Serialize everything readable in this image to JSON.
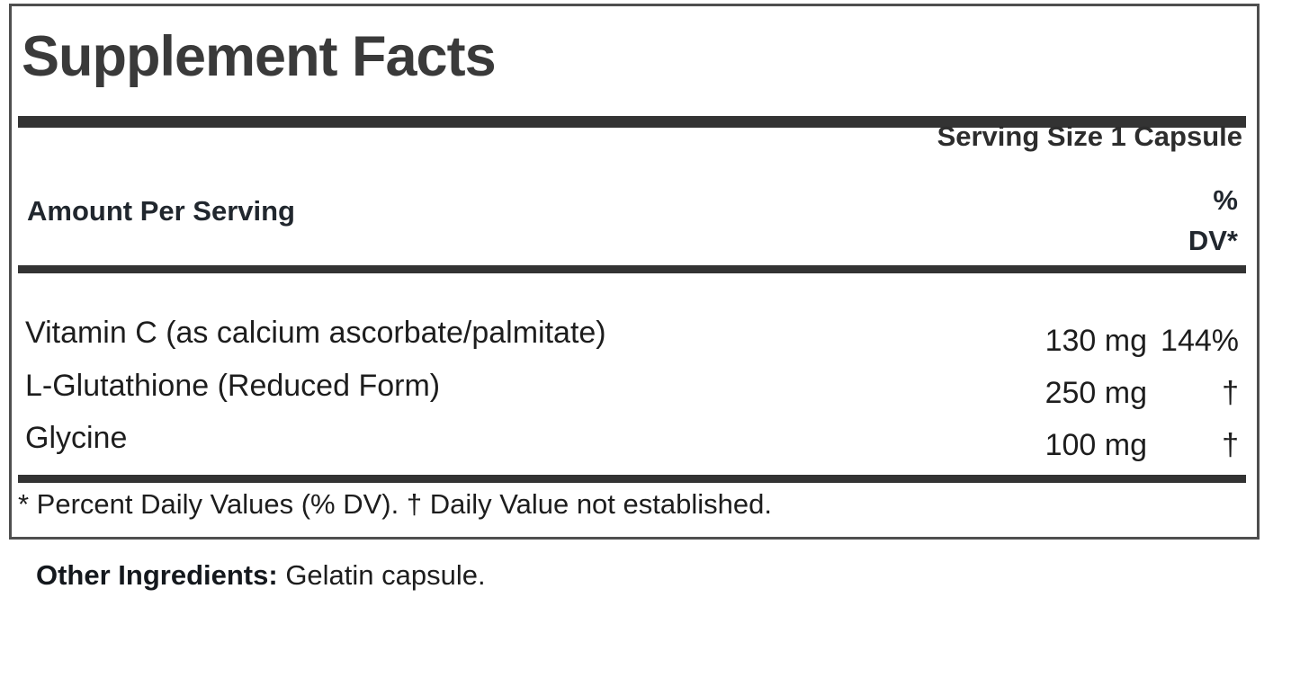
{
  "panel": {
    "title": "Supplement Facts",
    "serving_size": "Serving Size 1 Capsule",
    "columns": {
      "amount_header": "Amount Per Serving",
      "dv_header_line1": "%",
      "dv_header_line2": "DV*"
    },
    "rows": [
      {
        "name": "Vitamin C (as calcium ascorbate/palmitate)",
        "amount": "130 mg",
        "dv": "144%"
      },
      {
        "name": "L-Glutathione (Reduced Form)",
        "amount": "250 mg",
        "dv": "†"
      },
      {
        "name": "Glycine",
        "amount": "100 mg",
        "dv": "†"
      }
    ],
    "footnote": "* Percent Daily Values (% DV). † Daily Value not established."
  },
  "other_ingredients": {
    "label": "Other Ingredients:",
    "value": " Gelatin capsule."
  },
  "colors": {
    "text": "#1d1d1d",
    "title": "#3a3a3a",
    "rule": "#333333",
    "border": "#4f4f4f",
    "background": "#ffffff"
  }
}
